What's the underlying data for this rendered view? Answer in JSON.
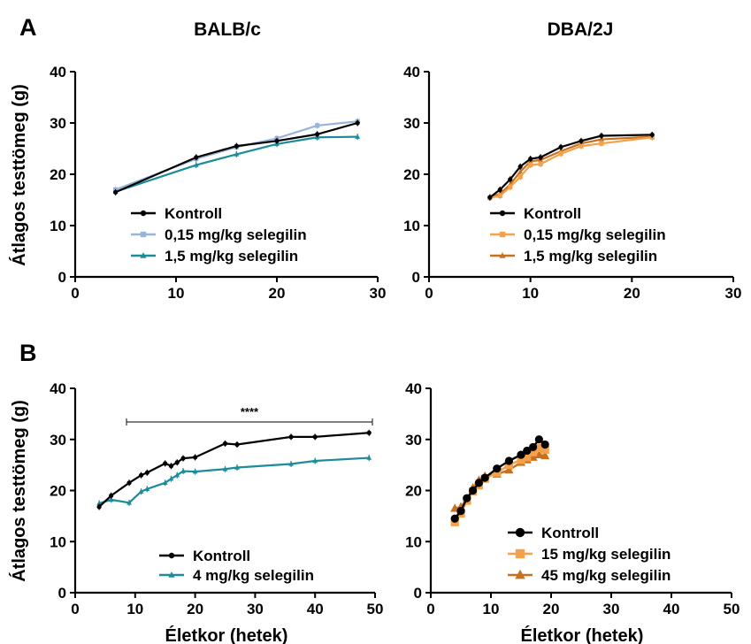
{
  "panels": {
    "a_label": "A",
    "b_label": "B"
  },
  "strains": {
    "left": "BALB/c",
    "right": "DBA/2J"
  },
  "ylabel": "Átlagos testtömeg (g)",
  "xlabel": "Életkor (hetek)",
  "significance": "****",
  "colors": {
    "kontroll": "#000000",
    "balb_low": "#9ab3d9",
    "balb_high": "#1a8c9a",
    "dba_low": "#f5a04a",
    "dba_high": "#c8701e"
  },
  "chart_data": [
    {
      "type": "line",
      "xlim": [
        0,
        30
      ],
      "ylim": [
        0,
        40
      ],
      "xticks": [
        0,
        10,
        20,
        30
      ],
      "yticks": [
        0,
        10,
        20,
        30,
        40
      ],
      "legend_position": "bottom-right",
      "series": [
        {
          "name": "Kontroll",
          "color": "#000000",
          "marker": "circle",
          "x": [
            4,
            12,
            16,
            20,
            24,
            28
          ],
          "y": [
            16.5,
            23.3,
            25.5,
            26.5,
            27.8,
            30.0
          ]
        },
        {
          "name": "0,15 mg/kg selegilin",
          "color": "#9ab3d9",
          "marker": "square",
          "x": [
            4,
            12,
            16,
            20,
            24,
            28
          ],
          "y": [
            17.0,
            23.0,
            25.3,
            27.0,
            29.5,
            30.3
          ]
        },
        {
          "name": "1,5 mg/kg selegilin",
          "color": "#1a8c9a",
          "marker": "triangle",
          "x": [
            4,
            12,
            16,
            20,
            24,
            28
          ],
          "y": [
            16.6,
            21.8,
            23.9,
            25.9,
            27.2,
            27.3
          ]
        }
      ]
    },
    {
      "type": "line",
      "xlim": [
        0,
        30
      ],
      "ylim": [
        0,
        40
      ],
      "xticks": [
        0,
        10,
        20,
        30
      ],
      "yticks": [
        0,
        10,
        20,
        30,
        40
      ],
      "legend_position": "bottom-right",
      "series": [
        {
          "name": "Kontroll",
          "color": "#000000",
          "marker": "circle",
          "x": [
            6,
            7,
            8,
            9,
            10,
            11,
            13,
            15,
            17,
            22
          ],
          "y": [
            15.5,
            17.0,
            19.0,
            21.5,
            23.0,
            23.3,
            25.3,
            26.5,
            27.5,
            27.7
          ]
        },
        {
          "name": "0,15 mg/kg selegilin",
          "color": "#f5a04a",
          "marker": "square",
          "x": [
            6,
            7,
            8,
            9,
            10,
            11,
            13,
            15,
            17,
            22
          ],
          "y": [
            15.4,
            15.8,
            17.5,
            19.5,
            21.8,
            22.0,
            24.0,
            25.5,
            26.0,
            27.2
          ]
        },
        {
          "name": "1,5 mg/kg selegilin",
          "color": "#c8701e",
          "marker": "triangle",
          "x": [
            6,
            7,
            8,
            9,
            10,
            11,
            13,
            15,
            17,
            22
          ],
          "y": [
            15.5,
            16.2,
            18.0,
            20.5,
            22.5,
            22.8,
            24.5,
            26.0,
            26.8,
            27.3
          ]
        }
      ]
    },
    {
      "type": "line",
      "xlim": [
        0,
        50
      ],
      "ylim": [
        0,
        40
      ],
      "xticks": [
        0,
        10,
        20,
        30,
        40,
        50
      ],
      "yticks": [
        0,
        10,
        20,
        30,
        40
      ],
      "legend_position": "bottom-right",
      "series": [
        {
          "name": "Kontroll",
          "color": "#000000",
          "marker": "circle",
          "x": [
            4,
            6,
            9,
            11,
            12,
            15,
            16,
            17,
            18,
            20,
            25,
            27,
            36,
            40,
            49
          ],
          "y": [
            16.8,
            19.0,
            21.5,
            23.0,
            23.5,
            25.3,
            24.8,
            25.5,
            26.3,
            26.5,
            29.2,
            29.0,
            30.5,
            30.5,
            31.3
          ]
        },
        {
          "name": "4 mg/kg selegilin",
          "color": "#1a8c9a",
          "marker": "triangle",
          "x": [
            4,
            6,
            9,
            11,
            12,
            15,
            16,
            17,
            18,
            20,
            25,
            27,
            36,
            40,
            49
          ],
          "y": [
            17.5,
            18.2,
            17.6,
            19.8,
            20.3,
            21.5,
            22.3,
            23.0,
            23.8,
            23.7,
            24.2,
            24.5,
            25.2,
            25.8,
            26.4
          ]
        }
      ]
    },
    {
      "type": "line",
      "xlim": [
        0,
        50
      ],
      "ylim": [
        0,
        40
      ],
      "xticks": [
        0,
        10,
        20,
        30,
        40,
        50
      ],
      "yticks": [
        0,
        10,
        20,
        30,
        40
      ],
      "legend_position": "bottom-right",
      "series": [
        {
          "name": "Kontroll",
          "color": "#000000",
          "marker": "circle",
          "x": [
            4,
            5,
            6,
            7,
            8,
            9,
            11,
            13,
            15,
            16,
            17,
            18,
            19
          ],
          "y": [
            14.5,
            16.0,
            18.5,
            20.0,
            21.5,
            22.5,
            24.3,
            25.8,
            27.0,
            27.8,
            28.5,
            30.0,
            29.0
          ]
        },
        {
          "name": "15 mg/kg selegilin",
          "color": "#f5a04a",
          "marker": "square",
          "x": [
            4,
            5,
            6,
            7,
            8,
            9,
            11,
            13,
            15,
            16,
            17,
            18,
            19
          ],
          "y": [
            13.8,
            15.5,
            18.0,
            19.8,
            21.0,
            22.3,
            23.5,
            25.0,
            26.0,
            26.5,
            27.5,
            28.3,
            28.0
          ]
        },
        {
          "name": "45 mg/kg selegilin",
          "color": "#c8701e",
          "marker": "triangle",
          "x": [
            4,
            5,
            6,
            7,
            8,
            9,
            11,
            13,
            15,
            16,
            17,
            18,
            19
          ],
          "y": [
            16.5,
            16.8,
            18.2,
            20.5,
            22.0,
            22.8,
            23.2,
            24.0,
            25.5,
            26.0,
            26.5,
            27.0,
            26.8
          ]
        }
      ]
    }
  ]
}
